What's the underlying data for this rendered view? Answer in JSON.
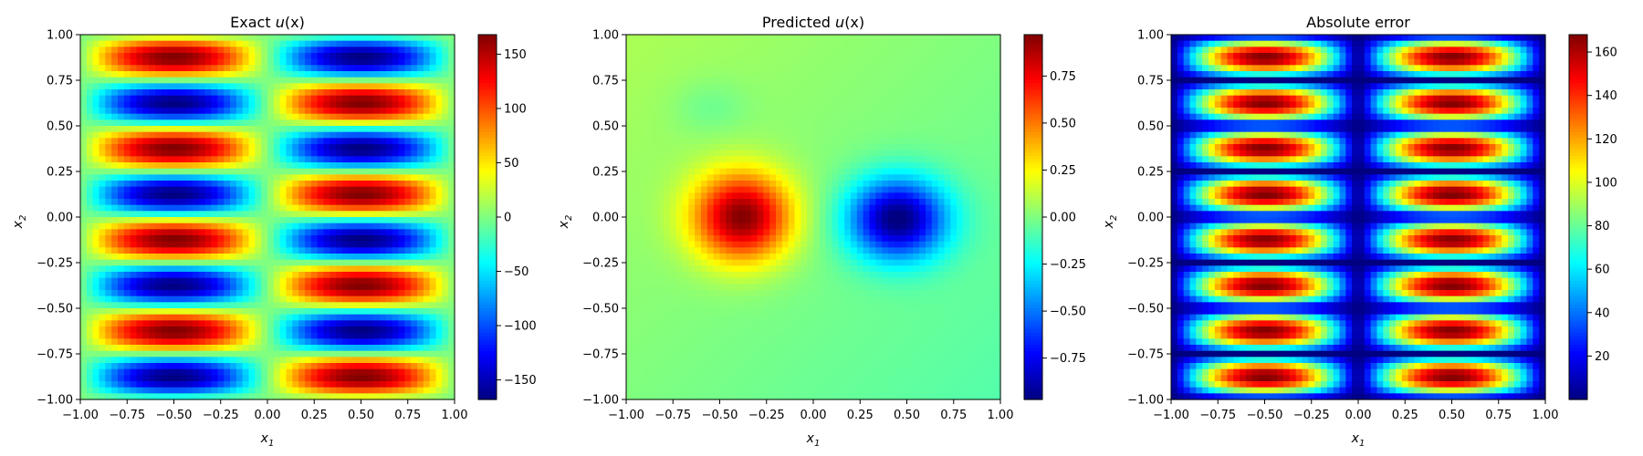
{
  "chart_data": [
    {
      "type": "heatmap",
      "title": "Exact u(x)",
      "title_parts": {
        "prefix": "Exact ",
        "symbol": "u",
        "arg": "(x)"
      },
      "xlabel": "x1",
      "ylabel": "x2",
      "xlim": [
        -1.0,
        1.0
      ],
      "ylim": [
        -1.0,
        1.0
      ],
      "x_ticks": [
        -1.0,
        -0.75,
        -0.5,
        -0.25,
        0.0,
        0.25,
        0.5,
        0.75,
        1.0
      ],
      "x_tick_labels": [
        "−1.00",
        "−0.75",
        "−0.50",
        "−0.25",
        "0.00",
        "0.25",
        "0.50",
        "0.75",
        "1.00"
      ],
      "y_ticks": [
        -1.0,
        -0.75,
        -0.5,
        -0.25,
        0.0,
        0.25,
        0.5,
        0.75,
        1.0
      ],
      "y_tick_labels": [
        "−1.00",
        "−0.75",
        "−0.50",
        "−0.25",
        "0.00",
        "0.25",
        "0.50",
        "0.75",
        "1.00"
      ],
      "colormap": "jet",
      "field": "168 * sin(pi * x1) * sin(4 * pi * x2) (approximate, from visual reading)",
      "clim": [
        -168,
        168
      ],
      "colorbar_ticks": [
        -150,
        -100,
        -50,
        0,
        50,
        100,
        150
      ],
      "colorbar_tick_labels": [
        "−150",
        "−100",
        "−50",
        "0",
        "50",
        "100",
        "150"
      ],
      "grid": false
    },
    {
      "type": "heatmap",
      "title": "Predicted u(x)",
      "title_parts": {
        "prefix": "Predicted ",
        "symbol": "u",
        "arg": "(x)"
      },
      "xlabel": "x1",
      "ylabel": "x2",
      "xlim": [
        -1.0,
        1.0
      ],
      "ylim": [
        -1.0,
        1.0
      ],
      "x_ticks": [
        -1.0,
        -0.75,
        -0.5,
        -0.25,
        0.0,
        0.25,
        0.5,
        0.75,
        1.0
      ],
      "x_tick_labels": [
        "−1.00",
        "−0.75",
        "−0.50",
        "−0.25",
        "0.00",
        "0.25",
        "0.50",
        "0.75",
        "1.00"
      ],
      "y_ticks": [
        -1.0,
        -0.75,
        -0.5,
        -0.25,
        0.0,
        0.25,
        0.5,
        0.75,
        1.0
      ],
      "y_tick_labels": [
        "−1.00",
        "−0.75",
        "−0.50",
        "−0.25",
        "0.00",
        "0.25",
        "0.50",
        "0.75",
        "1.00"
      ],
      "colormap": "jet",
      "features": [
        {
          "kind": "positive blob",
          "center": [
            -0.38,
            0.0
          ],
          "peak": 0.95
        },
        {
          "kind": "negative blob",
          "center": [
            0.45,
            0.0
          ],
          "peak": -0.97
        }
      ],
      "clim": [
        -0.97,
        0.97
      ],
      "colorbar_ticks": [
        -0.75,
        -0.5,
        -0.25,
        0.0,
        0.25,
        0.5,
        0.75
      ],
      "colorbar_tick_labels": [
        "−0.75",
        "−0.50",
        "−0.25",
        "0.00",
        "0.25",
        "0.50",
        "0.75"
      ],
      "grid": false
    },
    {
      "type": "heatmap",
      "title": "Absolute error",
      "xlabel": "x1",
      "ylabel": "x2",
      "xlim": [
        -1.0,
        1.0
      ],
      "ylim": [
        -1.0,
        1.0
      ],
      "x_ticks": [
        -1.0,
        -0.75,
        -0.5,
        -0.25,
        0.0,
        0.25,
        0.5,
        0.75,
        1.0
      ],
      "x_tick_labels": [
        "−1.00",
        "−0.75",
        "−0.50",
        "−0.25",
        "0.00",
        "0.25",
        "0.50",
        "0.75",
        "1.00"
      ],
      "y_ticks": [
        -1.0,
        -0.75,
        -0.5,
        -0.25,
        0.0,
        0.25,
        0.5,
        0.75,
        1.0
      ],
      "y_tick_labels": [
        "−1.00",
        "−0.75",
        "−0.50",
        "−0.25",
        "0.00",
        "0.25",
        "0.50",
        "0.75",
        "1.00"
      ],
      "colormap": "jet",
      "field": "|exact − predicted|",
      "clim": [
        0,
        168
      ],
      "colorbar_ticks": [
        20,
        40,
        60,
        80,
        100,
        120,
        140,
        160
      ],
      "colorbar_tick_labels": [
        "20",
        "40",
        "60",
        "80",
        "100",
        "120",
        "140",
        "160"
      ],
      "grid": false
    }
  ]
}
